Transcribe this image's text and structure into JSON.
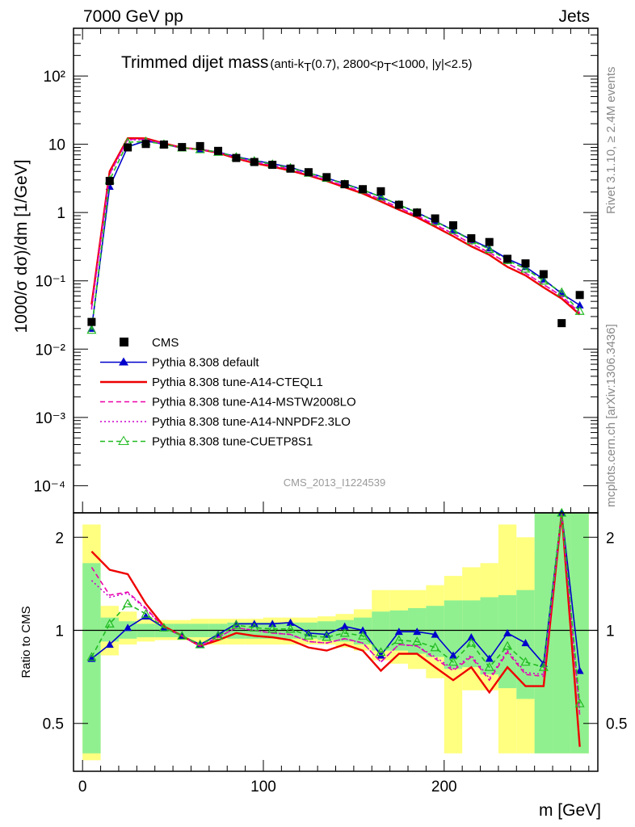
{
  "header": {
    "left": "7000 GeV pp",
    "right": "Jets",
    "side_top": "Rivet 3.1.10, ≥ 2.4M events",
    "side_bottom": "mcplots.cern.ch [arXiv:1306.3436]",
    "watermark": "CMS_2013_I1224539"
  },
  "title": {
    "main": "Trimmed dijet mass",
    "sub": "(anti-k",
    "sub_t": "T",
    "sub2": "(0.7), 2800<p",
    "sub2_t": "T",
    "sub3": "<1000, |y|<2.5)"
  },
  "axes": {
    "ylabel": "1000/σ dσ)/dm [1/GeV]",
    "ratio_ylabel": "Ratio to CMS",
    "xlabel": "m [GeV]",
    "x_ticks": [
      "0",
      "100",
      "200"
    ],
    "y_ticks": [
      "10⁻⁴",
      "10⁻³",
      "10⁻²",
      "10⁻¹",
      "1",
      "10",
      "10²"
    ],
    "ratio_ticks": [
      "0.5",
      "1",
      "2"
    ]
  },
  "legend": [
    {
      "label": "CMS",
      "color": "#000000",
      "marker": "square"
    },
    {
      "label": "Pythia 8.308 default",
      "color": "#0000cc",
      "marker": "triangle-filled"
    },
    {
      "label": "Pythia 8.308 tune-A14-CTEQL1",
      "color": "#ee0000",
      "marker": "line"
    },
    {
      "label": "Pythia 8.308 tune-A14-MSTW2008LO",
      "color": "#ee00aa",
      "marker": "dashed"
    },
    {
      "label": "Pythia 8.308 tune-A14-NNPDF2.3LO",
      "color": "#cc00cc",
      "marker": "dotted"
    },
    {
      "label": "Pythia 8.308 tune-CUETP8S1",
      "color": "#22bb22",
      "marker": "triangle-open-dashed"
    }
  ],
  "chart_data": {
    "type": "scatter",
    "x_unit": "GeV",
    "xlim": [
      -5,
      285
    ],
    "ylim_main": [
      4e-05,
      500
    ],
    "y_log": true,
    "ylim_ratio": [
      0.35,
      2.4
    ],
    "ratio_log": true,
    "x": [
      5,
      15,
      25,
      35,
      45,
      55,
      65,
      75,
      85,
      95,
      105,
      115,
      125,
      135,
      145,
      155,
      165,
      175,
      185,
      195,
      205,
      215,
      225,
      235,
      245,
      255,
      265,
      275
    ],
    "cms": [
      0.025,
      2.9,
      9.0,
      10.1,
      9.9,
      9.1,
      9.4,
      8.0,
      6.3,
      5.5,
      5.0,
      4.4,
      3.9,
      3.3,
      2.6,
      2.2,
      2.05,
      1.3,
      1.0,
      0.82,
      0.65,
      0.42,
      0.37,
      0.21,
      0.18,
      0.125,
      0.024,
      0.062
    ],
    "cms_stat_err": [
      0.004,
      0.1,
      0.2,
      0.2,
      0.2,
      0.2,
      0.2,
      0.15,
      0.12,
      0.1,
      0.1,
      0.09,
      0.08,
      0.07,
      0.06,
      0.05,
      0.05,
      0.04,
      0.03,
      0.03,
      0.02,
      0.02,
      0.02,
      0.01,
      0.01,
      0.01,
      0.002,
      0.004
    ],
    "series": [
      {
        "name": "Pythia 8.308 default",
        "color": "#0000cc",
        "style": "solid",
        "values": [
          0.02,
          2.4,
          9.2,
          11.2,
          10.0,
          8.8,
          8.4,
          7.7,
          6.6,
          5.8,
          5.2,
          4.6,
          3.8,
          3.2,
          2.65,
          2.15,
          1.7,
          1.3,
          1.0,
          0.75,
          0.55,
          0.4,
          0.3,
          0.21,
          0.16,
          0.105,
          0.065,
          0.044
        ],
        "ratio": [
          0.81,
          0.9,
          1.02,
          1.11,
          1.02,
          0.96,
          0.9,
          0.97,
          1.05,
          1.05,
          1.05,
          1.06,
          0.98,
          0.97,
          1.03,
          1.0,
          0.83,
          0.99,
          0.99,
          0.97,
          0.83,
          0.95,
          0.81,
          0.98,
          0.91,
          0.78,
          2.4,
          0.74
        ]
      },
      {
        "name": "Pythia 8.308 tune-A14-CTEQL1",
        "color": "#ee0000",
        "style": "solid",
        "values": [
          0.045,
          4.0,
          12.3,
          12.2,
          10.3,
          8.9,
          8.4,
          7.5,
          6.2,
          5.3,
          4.7,
          4.1,
          3.5,
          2.9,
          2.35,
          1.9,
          1.45,
          1.1,
          0.85,
          0.62,
          0.45,
          0.32,
          0.24,
          0.16,
          0.12,
          0.08,
          0.055,
          0.032
        ],
        "ratio": [
          1.8,
          1.57,
          1.52,
          1.22,
          1.03,
          0.96,
          0.89,
          0.93,
          0.98,
          0.96,
          0.95,
          0.93,
          0.88,
          0.86,
          0.9,
          0.86,
          0.74,
          0.84,
          0.84,
          0.76,
          0.69,
          0.76,
          0.63,
          0.76,
          0.66,
          0.66,
          2.4,
          0.42
        ]
      },
      {
        "name": "Pythia 8.308 tune-A14-MSTW2008LO",
        "color": "#ee00aa",
        "style": "dashed",
        "values": [
          0.04,
          3.7,
          11.8,
          11.8,
          10.1,
          8.8,
          8.4,
          7.6,
          6.4,
          5.5,
          4.9,
          4.3,
          3.6,
          3.0,
          2.45,
          2.0,
          1.55,
          1.18,
          0.9,
          0.66,
          0.49,
          0.35,
          0.26,
          0.18,
          0.13,
          0.088,
          0.06,
          0.034
        ],
        "ratio": [
          1.6,
          1.3,
          1.33,
          1.18,
          1.02,
          0.96,
          0.89,
          0.95,
          1.02,
          1.0,
          0.98,
          0.97,
          0.92,
          0.91,
          0.94,
          0.91,
          0.79,
          0.9,
          0.89,
          0.81,
          0.74,
          0.82,
          0.69,
          0.85,
          0.72,
          0.71,
          2.4,
          0.53
        ]
      },
      {
        "name": "Pythia 8.308 tune-A14-NNPDF2.3LO",
        "color": "#cc00cc",
        "style": "dotted",
        "values": [
          0.038,
          3.6,
          11.6,
          11.7,
          10.1,
          8.8,
          8.4,
          7.6,
          6.4,
          5.5,
          4.9,
          4.3,
          3.6,
          3.0,
          2.45,
          2.0,
          1.55,
          1.18,
          0.9,
          0.67,
          0.49,
          0.35,
          0.26,
          0.18,
          0.13,
          0.088,
          0.06,
          0.033
        ],
        "ratio": [
          1.45,
          1.28,
          1.32,
          1.17,
          1.02,
          0.96,
          0.89,
          0.95,
          1.02,
          1.0,
          0.98,
          0.97,
          0.92,
          0.91,
          0.94,
          0.91,
          0.79,
          0.9,
          0.89,
          0.82,
          0.75,
          0.83,
          0.7,
          0.86,
          0.73,
          0.72,
          2.4,
          0.55
        ]
      },
      {
        "name": "Pythia 8.308 tune-CUETP8S1",
        "color": "#22bb22",
        "style": "dashed",
        "values": [
          0.019,
          3.0,
          10.7,
          11.0,
          10.0,
          8.9,
          8.4,
          7.7,
          6.5,
          5.7,
          5.1,
          4.5,
          3.8,
          3.2,
          2.6,
          2.15,
          1.7,
          1.3,
          1.0,
          0.74,
          0.55,
          0.39,
          0.29,
          0.2,
          0.15,
          0.1,
          0.068,
          0.036
        ],
        "ratio": [
          0.82,
          1.05,
          1.22,
          1.13,
          1.02,
          0.96,
          0.9,
          0.96,
          1.04,
          1.02,
          1.01,
          1.01,
          0.96,
          0.95,
          0.98,
          0.96,
          0.85,
          0.93,
          0.92,
          0.88,
          0.79,
          0.91,
          0.76,
          0.89,
          0.79,
          0.76,
          2.4,
          0.58
        ]
      }
    ],
    "band_yellow": [
      [
        0.38,
        2.2
      ],
      [
        0.83,
        1.2
      ],
      [
        0.9,
        1.15
      ],
      [
        0.92,
        1.09
      ],
      [
        0.93,
        1.08
      ],
      [
        0.93,
        1.08
      ],
      [
        0.91,
        1.09
      ],
      [
        0.9,
        1.09
      ],
      [
        0.9,
        1.09
      ],
      [
        0.9,
        1.09
      ],
      [
        0.9,
        1.1
      ],
      [
        0.9,
        1.1
      ],
      [
        0.9,
        1.1
      ],
      [
        0.9,
        1.11
      ],
      [
        0.88,
        1.13
      ],
      [
        0.86,
        1.17
      ],
      [
        0.8,
        1.35
      ],
      [
        0.78,
        1.35
      ],
      [
        0.75,
        1.35
      ],
      [
        0.7,
        1.4
      ],
      [
        0.4,
        1.5
      ],
      [
        0.64,
        1.6
      ],
      [
        0.64,
        1.65
      ],
      [
        0.4,
        2.2
      ],
      [
        0.4,
        2.0
      ],
      [
        0.4,
        1.8
      ],
      [
        0.4,
        2.4
      ],
      [
        0.4,
        2.4
      ]
    ],
    "band_green": [
      [
        0.4,
        1.65
      ],
      [
        0.92,
        1.1
      ],
      [
        0.94,
        1.07
      ],
      [
        0.95,
        1.05
      ],
      [
        0.95,
        1.05
      ],
      [
        0.95,
        1.05
      ],
      [
        0.95,
        1.05
      ],
      [
        0.95,
        1.05
      ],
      [
        0.94,
        1.06
      ],
      [
        0.94,
        1.06
      ],
      [
        0.94,
        1.06
      ],
      [
        0.94,
        1.06
      ],
      [
        0.94,
        1.06
      ],
      [
        0.93,
        1.07
      ],
      [
        0.92,
        1.08
      ],
      [
        0.9,
        1.1
      ],
      [
        0.86,
        1.15
      ],
      [
        0.86,
        1.16
      ],
      [
        0.84,
        1.18
      ],
      [
        0.82,
        1.2
      ],
      [
        0.75,
        1.25
      ],
      [
        0.76,
        1.25
      ],
      [
        0.72,
        1.28
      ],
      [
        0.65,
        1.3
      ],
      [
        0.6,
        1.35
      ],
      [
        0.4,
        2.4
      ],
      [
        0.4,
        2.4
      ],
      [
        0.4,
        2.4
      ]
    ]
  }
}
